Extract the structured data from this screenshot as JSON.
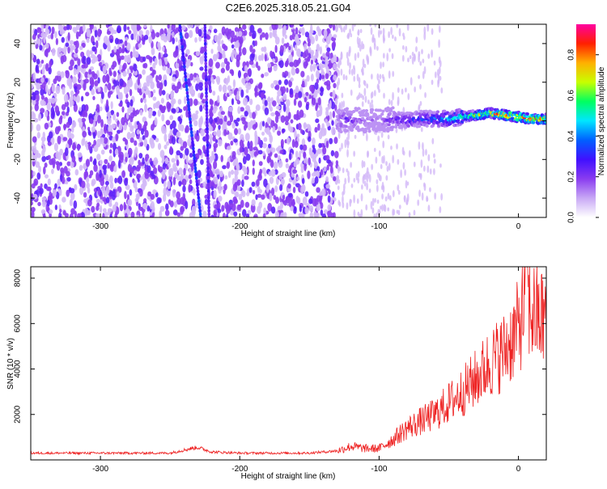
{
  "page_title": "C2E6.2025.318.05.21.G04",
  "colors": {
    "snr_line": "#ee2222",
    "axis": "#000000",
    "background": "#ffffff",
    "colormap": [
      "#ffffff",
      "#c8a8f5",
      "#8a3cf0",
      "#4010ff",
      "#0060ff",
      "#00e6ff",
      "#00ff60",
      "#c8ff00",
      "#ffb000",
      "#ff2000",
      "#ff00a0"
    ]
  },
  "chart_data": [
    {
      "type": "heatmap",
      "title": "",
      "xlabel": "Height of straight line (km)",
      "ylabel": "Frequency (Hz)",
      "xlim": [
        -350,
        20
      ],
      "ylim": [
        -50,
        50
      ],
      "x_ticks": [
        -300,
        -200,
        -100,
        0
      ],
      "y_ticks": [
        -40,
        -20,
        0,
        20,
        40
      ],
      "x_tick_labels": [
        "-300",
        "-200",
        "-100",
        "0"
      ],
      "y_tick_labels": [
        "-40",
        "-20",
        "0",
        "20",
        "40"
      ],
      "colorbar": {
        "label": "Normalized spectral amplitude",
        "range": [
          0,
          0.95
        ],
        "ticks": [
          0,
          0.2,
          0.4,
          0.6,
          0.8
        ],
        "tick_labels": [
          "0.0",
          "0.2",
          "0.4",
          "0.6",
          "0.8"
        ]
      },
      "features": {
        "noise_region_x": [
          -350,
          -130
        ],
        "sparse_region_x": [
          -130,
          -95
        ],
        "signal_track": {
          "x": [
            -130,
            -120,
            -110,
            -100,
            -90,
            -80,
            -70,
            -60,
            -50,
            -40,
            -30,
            -20,
            -10,
            0,
            10,
            20
          ],
          "frequency": [
            0,
            1,
            0,
            0,
            1,
            0,
            1,
            1,
            1,
            2,
            3,
            4,
            3,
            2,
            1,
            1
          ],
          "amplitude": [
            0.2,
            0.25,
            0.15,
            0.15,
            0.25,
            0.3,
            0.35,
            0.4,
            0.45,
            0.6,
            0.7,
            0.8,
            0.85,
            0.9,
            0.85,
            0.8
          ]
        },
        "streaks": [
          {
            "x_top": -243,
            "x_bottom": -228,
            "amplitude": 0.3
          },
          {
            "x_top": -225,
            "x_bottom": -222,
            "amplitude": 0.25
          }
        ]
      }
    },
    {
      "type": "line",
      "title": "",
      "xlabel": "Height of straight line (km)",
      "ylabel": "SNR (10 * v/v)",
      "xlim": [
        -350,
        20
      ],
      "ylim": [
        0,
        8500
      ],
      "x_ticks": [
        -300,
        -200,
        -100,
        0
      ],
      "y_ticks": [
        2000,
        4000,
        6000,
        8000
      ],
      "x_tick_labels": [
        "-300",
        "-200",
        "-100",
        "0"
      ],
      "y_tick_labels": [
        "2000",
        "4000",
        "6000",
        "8000"
      ],
      "series": [
        {
          "name": "SNR",
          "x": [
            -350,
            -300,
            -250,
            -235,
            -230,
            -220,
            -200,
            -150,
            -130,
            -120,
            -110,
            -100,
            -90,
            -80,
            -70,
            -60,
            -50,
            -40,
            -30,
            -20,
            -10,
            -5,
            0,
            5,
            10,
            15,
            20
          ],
          "values": [
            300,
            300,
            300,
            500,
            550,
            350,
            300,
            300,
            400,
            600,
            500,
            500,
            900,
            1400,
            1700,
            2000,
            2500,
            3000,
            3600,
            4300,
            4800,
            5300,
            5800,
            7000,
            6500,
            6200,
            6300
          ],
          "peak": {
            "x": 6,
            "value": 8500
          }
        }
      ]
    }
  ]
}
